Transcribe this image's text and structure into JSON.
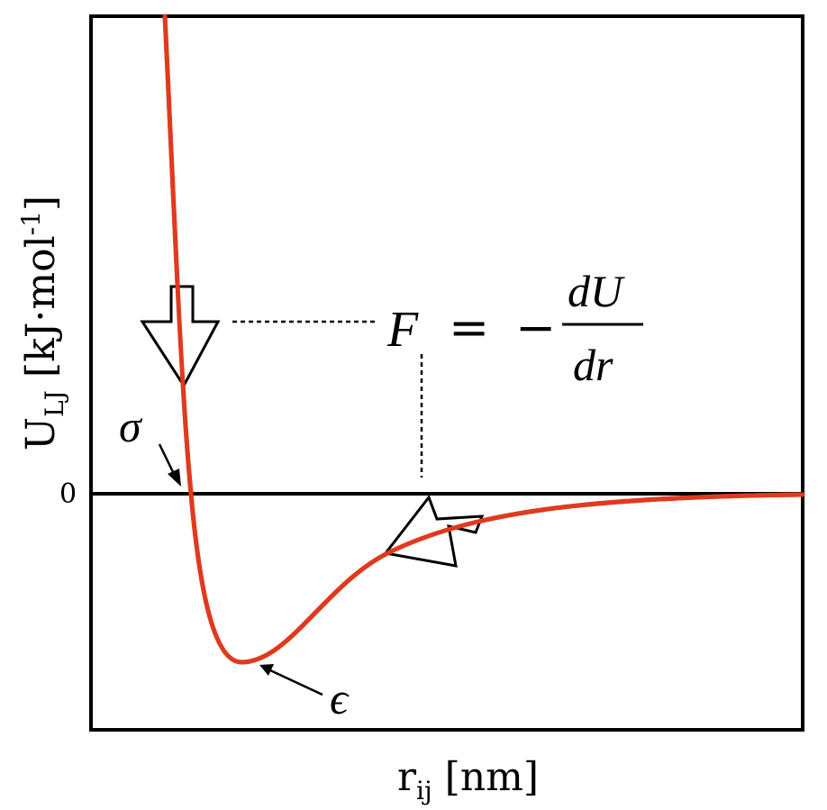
{
  "axes": {
    "ylabel_main": "U",
    "ylabel_sub": "LJ",
    "ylabel_unit_pre": " [kJ·mol",
    "ylabel_unit_sup": "-1",
    "ylabel_unit_post": "]",
    "xlabel_main": "r",
    "xlabel_sub": "ij",
    "xlabel_unit": " [nm]",
    "zero_tick": "0"
  },
  "annotations": {
    "sigma": "σ",
    "epsilon": "ϵ",
    "force_lhs": "F",
    "force_eq": "=",
    "force_minus": "−",
    "force_num": "dU",
    "force_den": "dr"
  },
  "colors": {
    "curve": "#e03a1e",
    "axis": "#000000",
    "arrow_fill": "#ffffff",
    "arrow_stroke": "#000000"
  }
}
